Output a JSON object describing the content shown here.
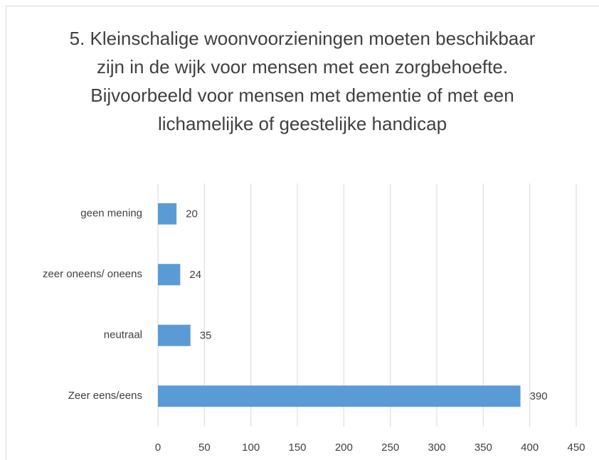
{
  "chart_data": {
    "type": "bar",
    "orientation": "horizontal",
    "title": "5. Kleinschalige woonvoorzieningen moeten beschikbaar zijn in de wijk voor mensen met een zorgbehoefte. Bijvoorbeeld voor mensen met dementie of met een lichamelijke of geestelijke handicap",
    "categories": [
      "geen mening",
      "zeer oneens/ oneens",
      "neutraal",
      "Zeer eens/eens"
    ],
    "values": [
      20,
      24,
      35,
      390
    ],
    "color": "#5b9bd5",
    "xlim": [
      0,
      450
    ],
    "xticks": [
      0,
      50,
      100,
      150,
      200,
      250,
      300,
      350,
      400,
      450
    ],
    "grid": true
  }
}
